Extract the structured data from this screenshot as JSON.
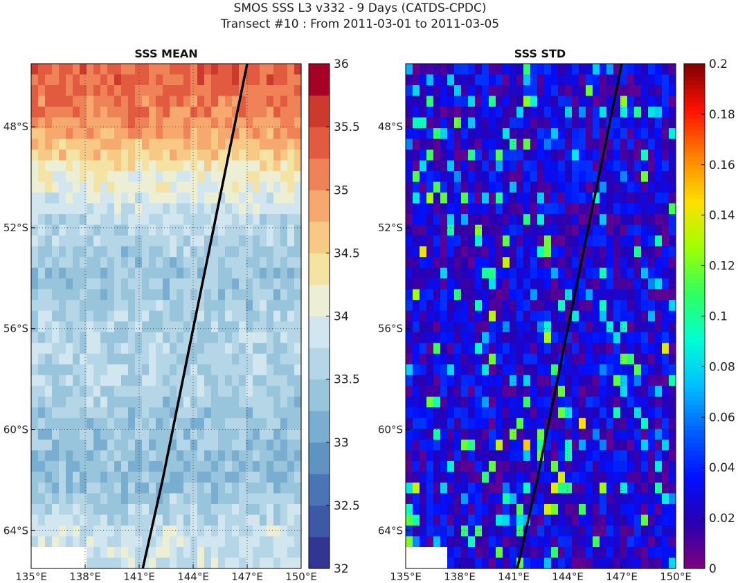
{
  "figure": {
    "title_line1": "SMOS SSS L3 v332 - 9 Days (CATDS-CPDC)",
    "title_line2": "Transect #10 : From 2011-03-01 to 2011-03-05"
  },
  "chart_data": [
    {
      "type": "heatmap",
      "title": "SSS MEAN",
      "xlabel": "",
      "ylabel": "",
      "x_ticks": [
        "135°E",
        "138°E",
        "141°E",
        "144°E",
        "147°E",
        "150°E"
      ],
      "x_tick_values": [
        135,
        138,
        141,
        144,
        147,
        150
      ],
      "y_ticks": [
        "48°S",
        "52°S",
        "56°S",
        "60°S",
        "64°S"
      ],
      "y_tick_values": [
        -48,
        -52,
        -56,
        -60,
        -64
      ],
      "xlim": [
        135,
        150
      ],
      "ylim": [
        -65.5,
        -45.5
      ],
      "grid": true,
      "colorbar": {
        "min": 32,
        "max": 36,
        "levels": 16,
        "ticks": [
          "32",
          "32.5",
          "33",
          "33.5",
          "34",
          "34.5",
          "35",
          "35.5",
          "36"
        ],
        "tick_values": [
          32,
          32.5,
          33,
          33.5,
          34,
          34.5,
          35,
          35.5,
          36
        ],
        "colormap": "RdYlBu_r",
        "colors": [
          "#313695",
          "#3d59a6",
          "#4a74b4",
          "#5f93c1",
          "#7aaed0",
          "#98c4dc",
          "#b4d6e6",
          "#d1e6ee",
          "#ecefd4",
          "#f5e3a3",
          "#f8c984",
          "#f6a86e",
          "#ef8256",
          "#e25a40",
          "#cc3a2d",
          "#a50026"
        ]
      },
      "field_description_by_latitude": [
        {
          "lat": -46,
          "sss": 35.3
        },
        {
          "lat": -48,
          "sss": 35.0
        },
        {
          "lat": -50,
          "sss": 34.2
        },
        {
          "lat": -52,
          "sss": 33.6
        },
        {
          "lat": -54,
          "sss": 33.4
        },
        {
          "lat": -56,
          "sss": 33.6
        },
        {
          "lat": -58,
          "sss": 33.6
        },
        {
          "lat": -60,
          "sss": 33.4
        },
        {
          "lat": -62,
          "sss": 33.3
        },
        {
          "lat": -64,
          "sss": 33.8
        }
      ],
      "transect": [
        {
          "lon": 147.0,
          "lat": -45.5
        },
        {
          "lon": 144.0,
          "lat": -56.0
        },
        {
          "lon": 142.3,
          "lat": -62.0
        },
        {
          "lon": 141.2,
          "lat": -65.5
        }
      ]
    },
    {
      "type": "heatmap",
      "title": "SSS STD",
      "xlabel": "",
      "ylabel": "",
      "x_ticks": [
        "135°E",
        "138°E",
        "141°E",
        "144°E",
        "147°E",
        "150°E"
      ],
      "x_tick_values": [
        135,
        138,
        141,
        144,
        147,
        150
      ],
      "y_ticks": [
        "48°S",
        "52°S",
        "56°S",
        "60°S",
        "64°S"
      ],
      "y_tick_values": [
        -48,
        -52,
        -56,
        -60,
        -64
      ],
      "xlim": [
        135,
        150
      ],
      "ylim": [
        -65.5,
        -45.5
      ],
      "grid": true,
      "colorbar": {
        "min": 0,
        "max": 0.2,
        "ticks": [
          "0",
          "0.02",
          "0.04",
          "0.06",
          "0.08",
          "0.1",
          "0.12",
          "0.14",
          "0.16",
          "0.18",
          "0.2"
        ],
        "tick_values": [
          0,
          0.02,
          0.04,
          0.06,
          0.08,
          0.1,
          0.12,
          0.14,
          0.16,
          0.18,
          0.2
        ],
        "colormap": "jet-like",
        "colors": [
          "#800080",
          "#2a00b0",
          "#0010ff",
          "#0060ff",
          "#00c0ff",
          "#00ffd0",
          "#30ff60",
          "#a0ff00",
          "#ffe000",
          "#ff8000",
          "#ff1000",
          "#800000"
        ]
      },
      "typical_value": 0.03,
      "transect": [
        {
          "lon": 147.0,
          "lat": -45.5
        },
        {
          "lon": 144.0,
          "lat": -56.0
        },
        {
          "lon": 142.3,
          "lat": -62.0
        },
        {
          "lon": 141.2,
          "lat": -65.5
        }
      ]
    }
  ]
}
